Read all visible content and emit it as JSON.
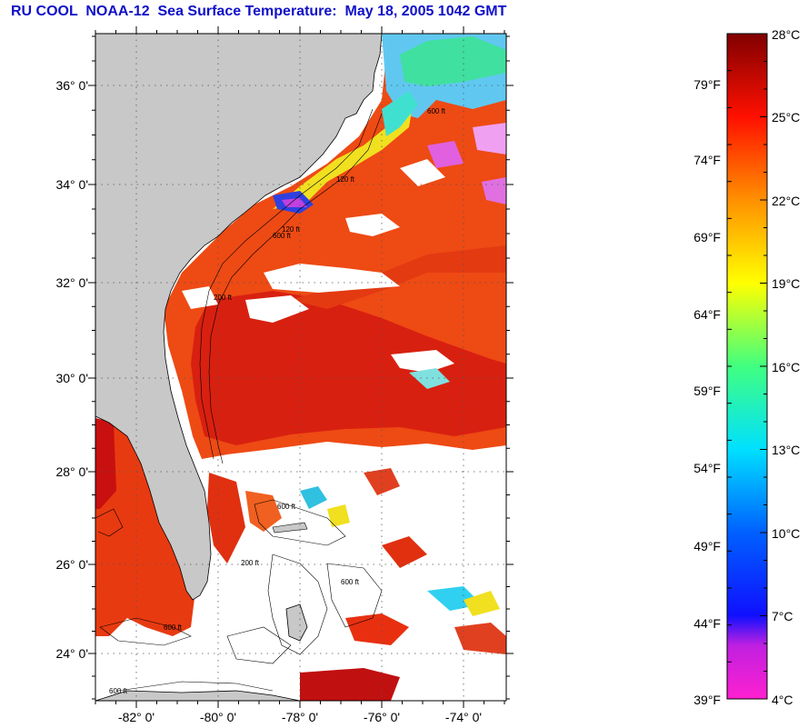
{
  "title": "RU COOL  NOAA-12  Sea Surface Temperature:  May 18, 2005 1042 GMT",
  "map": {
    "lat_labels": [
      "36° 0'",
      "34° 0'",
      "32° 0'",
      "30° 0'",
      "28° 0'",
      "26° 0'",
      "24° 0'"
    ],
    "lon_labels": [
      "-82° 0'",
      "-80° 0'",
      "-78° 0'",
      "-76° 0'",
      "-74° 0'"
    ],
    "contour_labels": [
      "200 ft",
      "600 ft",
      "120 ft",
      "600 ft",
      "200 ft",
      "120 ft",
      "600 ft",
      "600 ft",
      "600 ft",
      "600 ft"
    ],
    "colors": {
      "land": "#c8c8c8",
      "warm": "#e83010",
      "gulfstream": "#d81010",
      "shelf": "#f08020",
      "cool": "#f0e020",
      "cold": "#30c8f0",
      "cloud": "#ffffff"
    }
  },
  "colorbar": {
    "celsius": [
      "28°C",
      "25°C",
      "22°C",
      "19°C",
      "16°C",
      "13°C",
      "10°C",
      "7°C",
      "4°C"
    ],
    "fahrenheit": [
      "79°F",
      "74°F",
      "69°F",
      "64°F",
      "59°F",
      "54°F",
      "49°F",
      "44°F",
      "39°F"
    ],
    "range_c": [
      4,
      28
    ],
    "gradient": [
      "#ff20d0",
      "#2020ff",
      "#00e0ff",
      "#40ff40",
      "#ffff00",
      "#ff8000",
      "#ff0000",
      "#800000"
    ]
  }
}
